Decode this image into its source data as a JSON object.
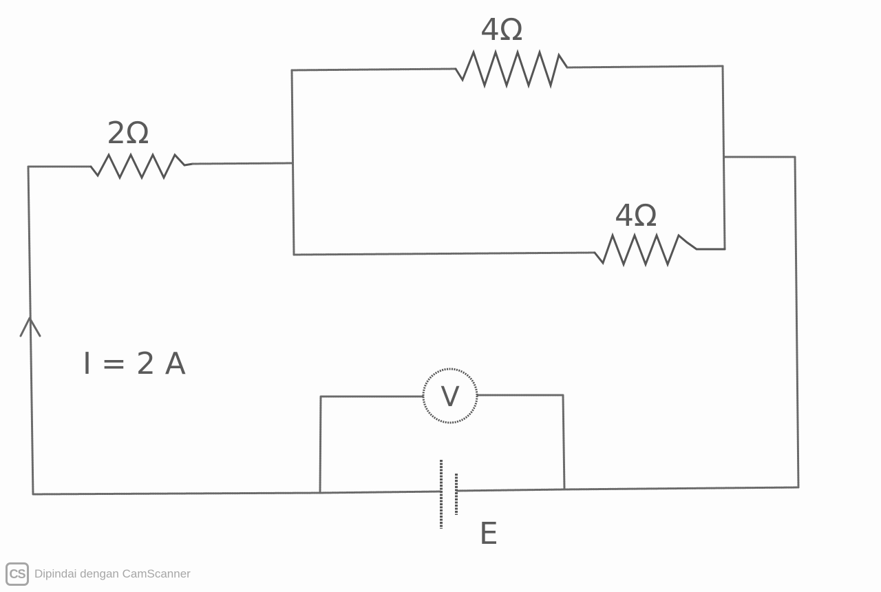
{
  "diagram": {
    "resistors": {
      "series": "2Ω",
      "parallel_top": "4Ω",
      "parallel_bottom": "4Ω"
    },
    "current_label": "I = 2 A",
    "voltmeter_symbol": "V",
    "battery_label": "E"
  },
  "watermark": {
    "logo": "CS",
    "text": "Dipindai dengan CamScanner"
  }
}
